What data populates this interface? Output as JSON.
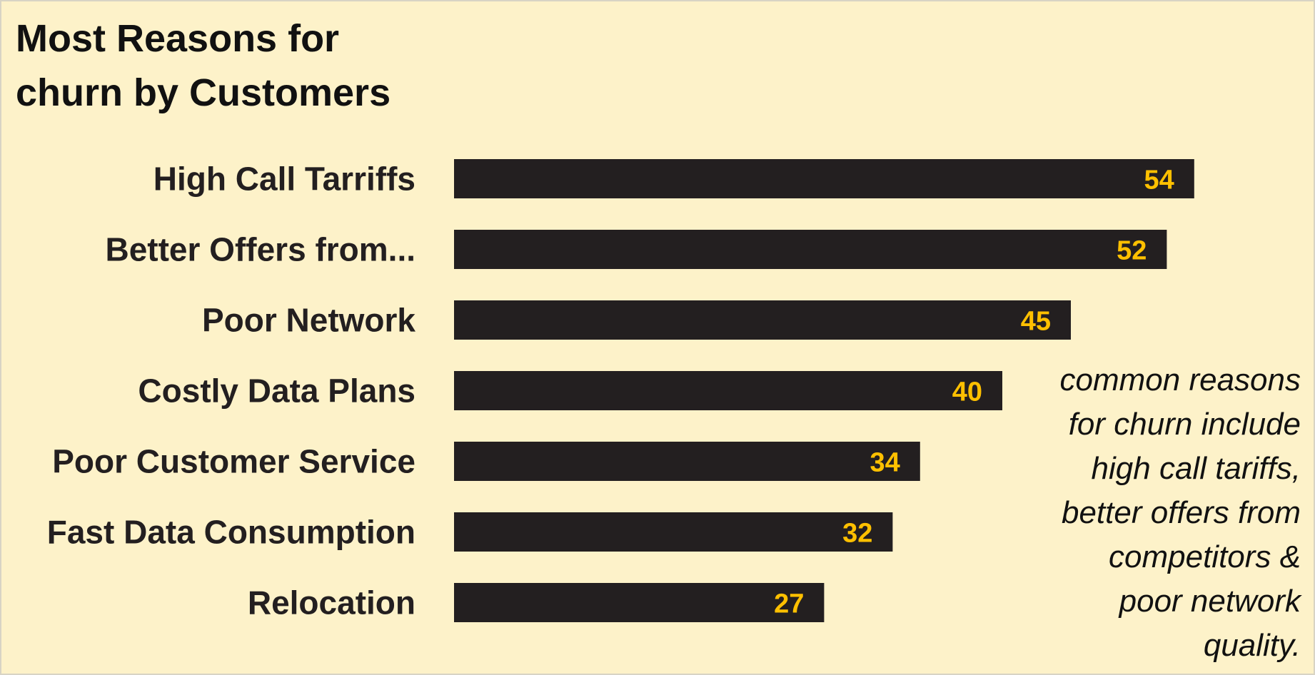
{
  "chart_data": {
    "type": "bar",
    "orientation": "horizontal",
    "title": "Most Reasons for\nchurn by Customers",
    "categories": [
      "High Call Tarriffs",
      "Better Offers from...",
      "Poor Network",
      "Costly Data Plans",
      "Poor Customer Service",
      "Fast Data Consumption",
      "Relocation"
    ],
    "values": [
      54,
      52,
      45,
      40,
      34,
      32,
      27
    ],
    "data_labels": true,
    "grid": false,
    "legend": "none",
    "annotation": "common reasons\nfor churn  include\nhigh call tariffs,\nbetter offers from\ncompetitors &\npoor network\nquality."
  },
  "colors": {
    "background": "#fdf2c9",
    "bar": "#231f20",
    "value_label": "#ffc000",
    "text": "#231f20"
  }
}
